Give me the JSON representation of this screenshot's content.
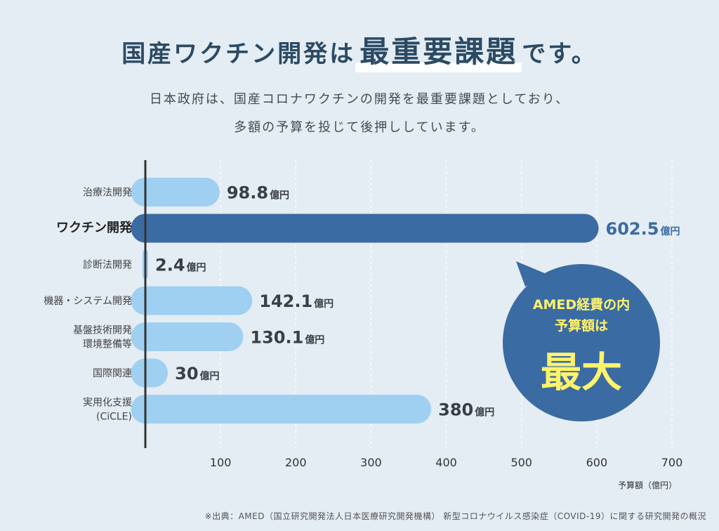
{
  "header": {
    "title_prefix": "国産ワクチン開発は",
    "title_emph": "最重要課題",
    "title_suffix": "です。",
    "subtitle_line1": "日本政府は、国産コロナワクチンの開発を最重要課題としており、",
    "subtitle_line2": "多額の予算を投じて後押ししています。"
  },
  "chart_data": {
    "type": "bar",
    "orientation": "horizontal",
    "categories": [
      "治療法開発",
      "ワクチン開発",
      "診断法開発",
      "機器・システム開発",
      "基盤技術開発\n環境整備等",
      "国際関連",
      "実用化支援\n(CiCLE)"
    ],
    "values": [
      98.8,
      602.5,
      2.4,
      142.1,
      130.1,
      30,
      380
    ],
    "value_labels": [
      "98.8",
      "602.5",
      "2.4",
      "142.1",
      "130.1",
      "30",
      "380"
    ],
    "value_unit": "億円",
    "highlight_index": 1,
    "xlim": [
      0,
      700
    ],
    "xticks": [
      100,
      200,
      300,
      400,
      500,
      600,
      700
    ],
    "xlabel": "予算額（億円）",
    "grid": true,
    "colors": {
      "bar": "#9fd0f2",
      "highlight": "#3b6ba3",
      "value_text": "#3a3f45",
      "highlight_text": "#3b6ba3",
      "grid": "#ffffff",
      "axis": "#333333"
    }
  },
  "callout": {
    "line1": "AMED経費の内",
    "line2": "予算額は",
    "big": "最大",
    "bg_color": "#3b6ba3",
    "text_color": "#fff36b"
  },
  "footer": {
    "source": "※出典：AMED（国立研究開発法人日本医療研究開発機構） 新型コロナウイルス感染症（COVID-19）に関する研究開発の概況"
  }
}
